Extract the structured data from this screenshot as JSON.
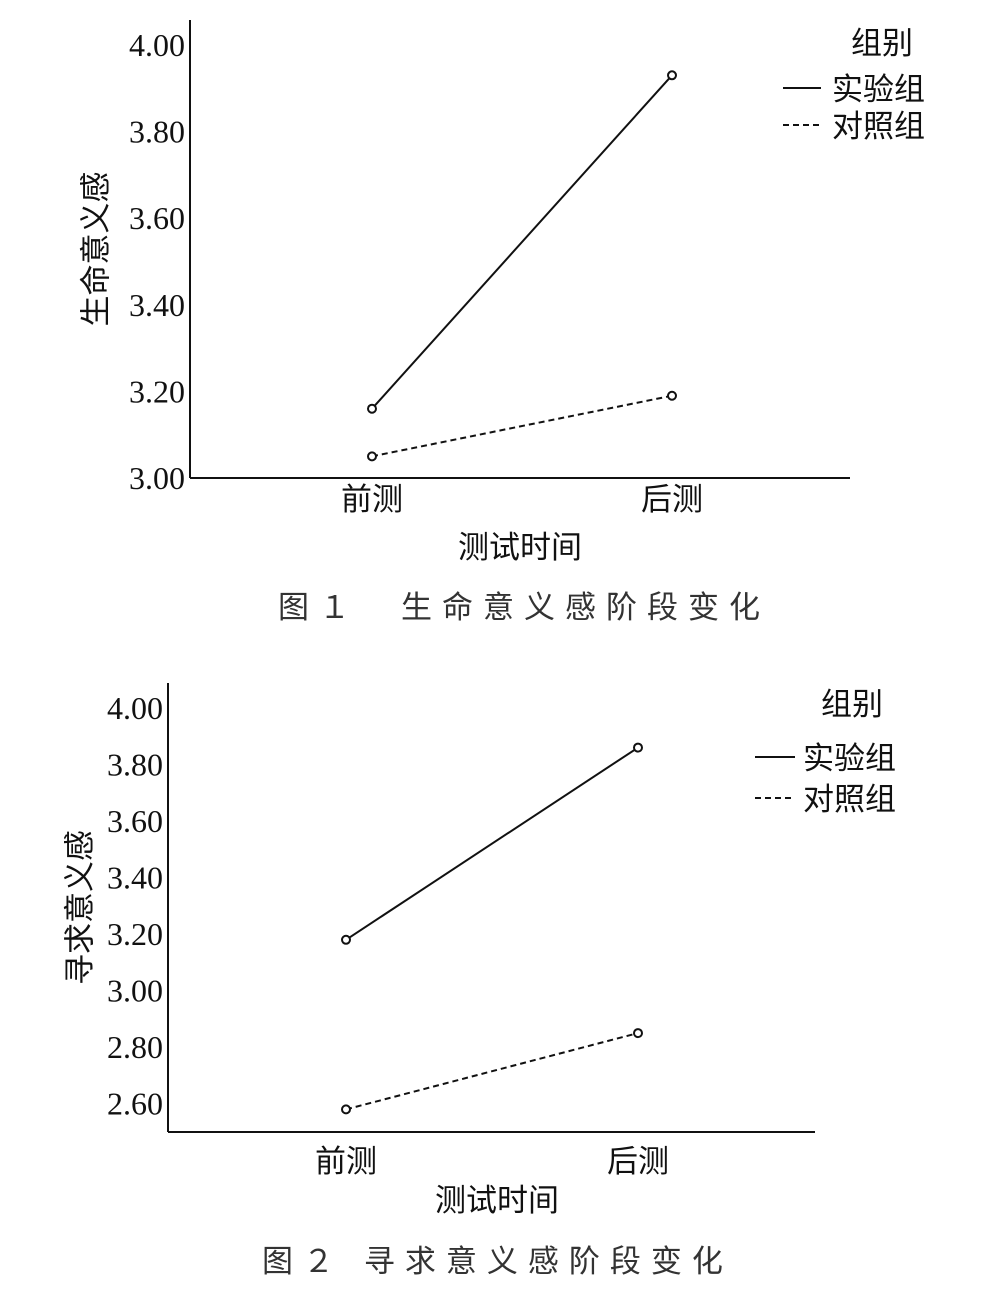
{
  "chart_data": [
    {
      "type": "line",
      "categories": [
        "前测",
        "后测"
      ],
      "series": [
        {
          "name": "实验组",
          "values": [
            3.16,
            3.93
          ],
          "style": "solid"
        },
        {
          "name": "对照组",
          "values": [
            3.05,
            3.19
          ],
          "style": "dashed"
        }
      ],
      "ylabel": "生命意义感",
      "xlabel": "测试时间",
      "ylim": [
        3.0,
        4.0
      ],
      "yticks": [
        "3.00",
        "3.20",
        "3.40",
        "3.60",
        "3.80",
        "4.00"
      ],
      "legend_title": "组别",
      "legend_position": "top-right",
      "grid": false,
      "caption": "图１　生命意义感阶段变化"
    },
    {
      "type": "line",
      "categories": [
        "前测",
        "后测"
      ],
      "series": [
        {
          "name": "实验组",
          "values": [
            3.18,
            3.86
          ],
          "style": "solid"
        },
        {
          "name": "对照组",
          "values": [
            2.58,
            2.85
          ],
          "style": "dashed"
        }
      ],
      "ylabel": "寻求意义感",
      "xlabel": "测试时间",
      "ylim": [
        2.5,
        4.0
      ],
      "yticks": [
        "2.60",
        "2.80",
        "3.00",
        "3.20",
        "3.40",
        "3.60",
        "3.80",
        "4.00"
      ],
      "legend_title": "组别",
      "legend_position": "top-right",
      "grid": false,
      "caption": "图２ 寻求意义感阶段变化"
    }
  ]
}
